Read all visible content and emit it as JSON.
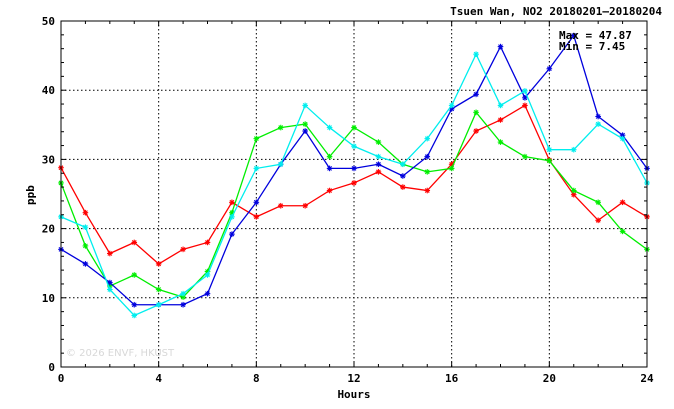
{
  "chart_data": {
    "type": "line",
    "title": "Tsuen Wan, NO2 20180201–20180204",
    "xlabel": "Hours",
    "ylabel": "ppb",
    "xlim": [
      0,
      24
    ],
    "ylim": [
      0,
      50
    ],
    "xticks": [
      0,
      4,
      8,
      12,
      16,
      20,
      24
    ],
    "yticks": [
      0,
      10,
      20,
      30,
      40,
      50
    ],
    "grid": true,
    "stats": {
      "max_label": "Max = 47.87",
      "min_label": "Min =  7.45"
    },
    "watermark": "© 2026  ENVF, HKUST",
    "x": [
      0,
      1,
      2,
      3,
      4,
      5,
      6,
      7,
      8,
      9,
      10,
      11,
      12,
      13,
      14,
      15,
      16,
      17,
      18,
      19,
      20,
      21,
      22,
      23,
      24
    ],
    "series": [
      {
        "color": "#ff0000",
        "values": [
          28.8,
          22.3,
          16.4,
          18.0,
          14.9,
          17.0,
          18.0,
          23.8,
          21.7,
          23.3,
          23.3,
          25.5,
          26.6,
          28.2,
          26.0,
          25.5,
          29.3,
          34.1,
          35.7,
          37.8,
          29.9,
          24.9,
          21.2,
          23.8,
          21.7
        ]
      },
      {
        "color": "#00ee00",
        "values": [
          26.6,
          17.5,
          11.7,
          13.3,
          11.2,
          10.1,
          13.8,
          22.3,
          33.0,
          34.6,
          35.1,
          30.4,
          34.6,
          32.5,
          29.3,
          28.2,
          28.7,
          36.8,
          32.5,
          30.4,
          29.8,
          25.5,
          23.8,
          19.6,
          17.0
        ]
      },
      {
        "color": "#0000dd",
        "values": [
          17.0,
          14.9,
          12.2,
          9.0,
          9.0,
          9.0,
          10.6,
          19.2,
          23.8,
          29.3,
          34.1,
          28.7,
          28.7,
          29.3,
          27.6,
          30.4,
          37.3,
          39.4,
          46.3,
          38.9,
          43.1,
          47.9,
          36.2,
          33.5,
          28.7
        ]
      },
      {
        "color": "#00eeee",
        "values": [
          21.7,
          20.2,
          11.2,
          7.45,
          9.0,
          10.6,
          13.3,
          21.7,
          28.7,
          29.3,
          37.8,
          34.6,
          31.9,
          30.4,
          29.3,
          33.0,
          37.8,
          45.2,
          37.8,
          39.9,
          31.4,
          31.4,
          35.1,
          33.0,
          26.6
        ]
      }
    ]
  }
}
